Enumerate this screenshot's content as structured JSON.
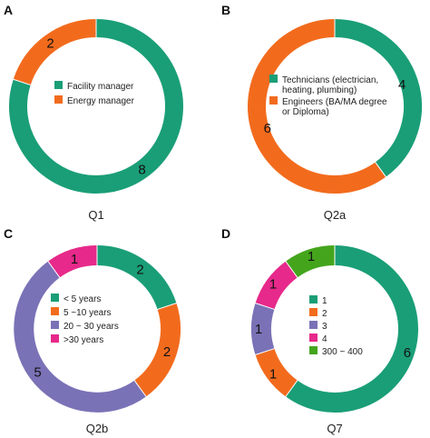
{
  "colors": {
    "green": "#1a9e77",
    "orange": "#f26b1d",
    "purple": "#7a72b6",
    "magenta": "#e6298a",
    "lime": "#44a51d"
  },
  "chart_data": [
    {
      "type": "pie",
      "panel": "A",
      "title": "Q1",
      "slices": [
        {
          "value": 2,
          "label": "2",
          "legend": "Energy manager",
          "color": "#f26b1d"
        },
        {
          "value": 8,
          "label": "8",
          "legend": "Facility manager",
          "color": "#1a9e77"
        }
      ],
      "legend": [
        {
          "text": "Facility manager",
          "color": "#1a9e77"
        },
        {
          "text": "Energy manager",
          "color": "#f26b1d"
        }
      ]
    },
    {
      "type": "pie",
      "panel": "B",
      "title": "Q2a",
      "slices": [
        {
          "value": 4,
          "label": "4",
          "legend": "Technicians",
          "color": "#1a9e77"
        },
        {
          "value": 6,
          "label": "6",
          "legend": "Engineers",
          "color": "#f26b1d"
        }
      ],
      "legend": [
        {
          "lines": [
            "Technicians (electrician,",
            "heating, plumbing)"
          ],
          "color": "#1a9e77"
        },
        {
          "lines": [
            "Engineers (BA/MA degree",
            "or Diploma)"
          ],
          "color": "#f26b1d"
        }
      ]
    },
    {
      "type": "pie",
      "panel": "C",
      "title": "Q2b",
      "slices": [
        {
          "value": 2,
          "label": "2",
          "legend": "< 5 years",
          "color": "#1a9e77"
        },
        {
          "value": 2,
          "label": "2",
          "legend": "5 ~10 years",
          "color": "#f26b1d"
        },
        {
          "value": 5,
          "label": "5",
          "legend": "20 ~ 30 years",
          "color": "#7a72b6"
        },
        {
          "value": 1,
          "label": "1",
          "legend": ">30 years",
          "color": "#e6298a"
        }
      ],
      "legend": [
        {
          "text": "< 5 years",
          "color": "#1a9e77"
        },
        {
          "text": "5 ~10 years",
          "color": "#f26b1d"
        },
        {
          "text": "20 ~ 30 years",
          "color": "#7a72b6"
        },
        {
          "text": ">30 years",
          "color": "#e6298a"
        }
      ]
    },
    {
      "type": "pie",
      "panel": "D",
      "title": "Q7",
      "slices": [
        {
          "value": 6,
          "label": "6",
          "legend": "1",
          "color": "#1a9e77"
        },
        {
          "value": 1,
          "label": "1",
          "legend": "2",
          "color": "#f26b1d"
        },
        {
          "value": 1,
          "label": "1",
          "legend": "3",
          "color": "#7a72b6"
        },
        {
          "value": 1,
          "label": "1",
          "legend": "4",
          "color": "#e6298a"
        },
        {
          "value": 1,
          "label": "1",
          "legend": "300 ~ 400",
          "color": "#44a51d"
        }
      ],
      "legend": [
        {
          "text": "1",
          "color": "#1a9e77"
        },
        {
          "text": "2",
          "color": "#f26b1d"
        },
        {
          "text": "3",
          "color": "#7a72b6"
        },
        {
          "text": "4",
          "color": "#e6298a"
        },
        {
          "text": "300 ~ 400",
          "color": "#44a51d"
        }
      ]
    }
  ]
}
